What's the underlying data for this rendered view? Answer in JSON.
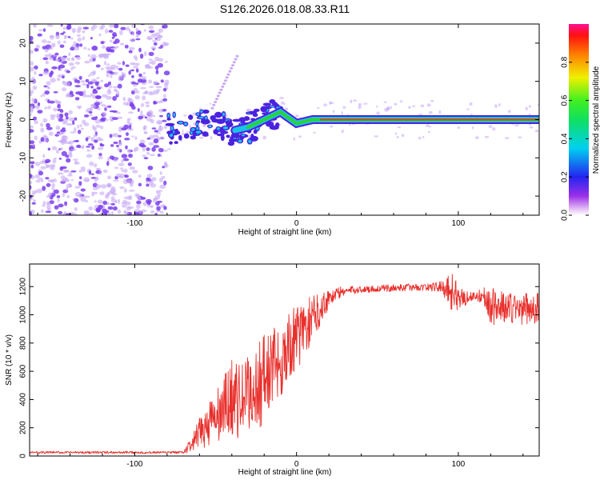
{
  "title": "S126.2026.018.08.33.R11",
  "colors": {
    "line": "#e8302c",
    "axis": "#000000",
    "speck": "#7a3ef0",
    "speck_light": "#c7a8f5",
    "blob": "#4b22e0",
    "ridge_core": "#e8302c",
    "ridge_mid": "#2ad13c",
    "ridge_edge": "#19c3e6"
  },
  "chart_data": [
    {
      "type": "heatmap",
      "name": "spectrogram",
      "title": "S126.2026.018.08.33.R11",
      "xlabel": "Height of straight line (km)",
      "ylabel": "Frequency (Hz)",
      "xlim": [
        -165,
        150
      ],
      "ylim": [
        -25,
        25
      ],
      "xticks": [
        -100,
        0,
        100
      ],
      "xtick_labels": [
        "-100",
        "0",
        "100"
      ],
      "yticks": [
        -20,
        -10,
        0,
        10,
        20
      ],
      "ytick_labels": [
        "-20",
        "-10",
        "0",
        "10",
        "20"
      ],
      "noise_region": [
        -165,
        -80
      ],
      "ridge": {
        "x": [
          -80,
          -70,
          -60,
          -50,
          -40,
          -30,
          -20,
          -10,
          0,
          10,
          20,
          150
        ],
        "y": [
          -3,
          -2,
          -1,
          0,
          -3,
          -2,
          0,
          2,
          -1,
          0,
          0,
          0
        ]
      },
      "colorbar": {
        "label": "Normalized spectral amplitude",
        "range": [
          0,
          1
        ],
        "ticks": [
          0.0,
          0.2,
          0.4,
          0.6,
          0.8
        ],
        "tick_labels": [
          "0.0",
          "0.2",
          "0.4",
          "0.6",
          "0.8"
        ]
      }
    },
    {
      "type": "line",
      "name": "snr",
      "xlabel": "Height of straight line (km)",
      "ylabel": "SNR (10 * v/v)",
      "xlim": [
        -165,
        150
      ],
      "ylim": [
        0,
        1360
      ],
      "xticks": [
        -100,
        0,
        100
      ],
      "xtick_labels": [
        "-100",
        "0",
        "100"
      ],
      "yticks": [
        0,
        200,
        400,
        600,
        800,
        1000,
        1200
      ],
      "ytick_labels": [
        "0",
        "200",
        "400",
        "600",
        "800",
        "1000",
        "1200"
      ],
      "series": [
        {
          "name": "SNR",
          "x": [
            -165,
            -70,
            -65,
            -60,
            -55,
            -50,
            -45,
            -40,
            -35,
            -30,
            -25,
            -20,
            -15,
            -10,
            -5,
            0,
            5,
            10,
            15,
            20,
            25,
            30,
            40,
            50,
            60,
            70,
            80,
            90,
            95,
            100,
            110,
            115,
            118,
            120,
            130,
            140,
            150
          ],
          "mean": [
            25,
            25,
            80,
            150,
            230,
            260,
            330,
            420,
            380,
            440,
            470,
            560,
            620,
            680,
            760,
            840,
            900,
            980,
            1050,
            1120,
            1150,
            1170,
            1180,
            1185,
            1190,
            1195,
            1195,
            1200,
            1180,
            1120,
            1130,
            1140,
            1100,
            1060,
            1050,
            1040,
            1050
          ],
          "spread": [
            8,
            8,
            60,
            120,
            170,
            190,
            240,
            280,
            260,
            280,
            300,
            330,
            300,
            280,
            260,
            230,
            200,
            160,
            120,
            70,
            50,
            30,
            25,
            25,
            25,
            25,
            25,
            40,
            150,
            90,
            30,
            60,
            90,
            130,
            120,
            110,
            120
          ]
        }
      ]
    }
  ]
}
